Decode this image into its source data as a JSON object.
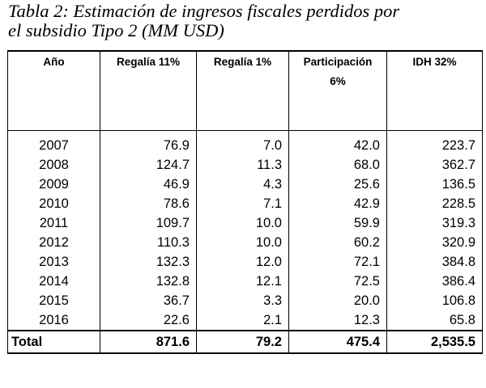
{
  "caption": {
    "line1": "Tabla 2: Estimación de ingresos fiscales perdidos por",
    "line2": "el subsidio Tipo 2 (MM USD)"
  },
  "table": {
    "headers": [
      "Año",
      "Regalía 11%",
      "Regalía 1%",
      "Participación 6%",
      "IDH 32%"
    ],
    "header_lines": {
      "h3_line1": "Participación",
      "h3_line2": "6%"
    },
    "rows": [
      [
        "2007",
        "76.9",
        "7.0",
        "42.0",
        "223.7"
      ],
      [
        "2008",
        "124.7",
        "11.3",
        "68.0",
        "362.7"
      ],
      [
        "2009",
        "46.9",
        "4.3",
        "25.6",
        "136.5"
      ],
      [
        "2010",
        "78.6",
        "7.1",
        "42.9",
        "228.5"
      ],
      [
        "2011",
        "109.7",
        "10.0",
        "59.9",
        "319.3"
      ],
      [
        "2012",
        "110.3",
        "10.0",
        "60.2",
        "320.9"
      ],
      [
        "2013",
        "132.3",
        "12.0",
        "72.1",
        "384.8"
      ],
      [
        "2014",
        "132.8",
        "12.1",
        "72.5",
        "386.4"
      ],
      [
        "2015",
        "36.7",
        "3.3",
        "20.0",
        "106.8"
      ],
      [
        "2016",
        "22.6",
        "2.1",
        "12.3",
        "65.8"
      ]
    ],
    "total": [
      "Total",
      "871.6",
      "79.2",
      "475.4",
      "2,535.5"
    ]
  }
}
